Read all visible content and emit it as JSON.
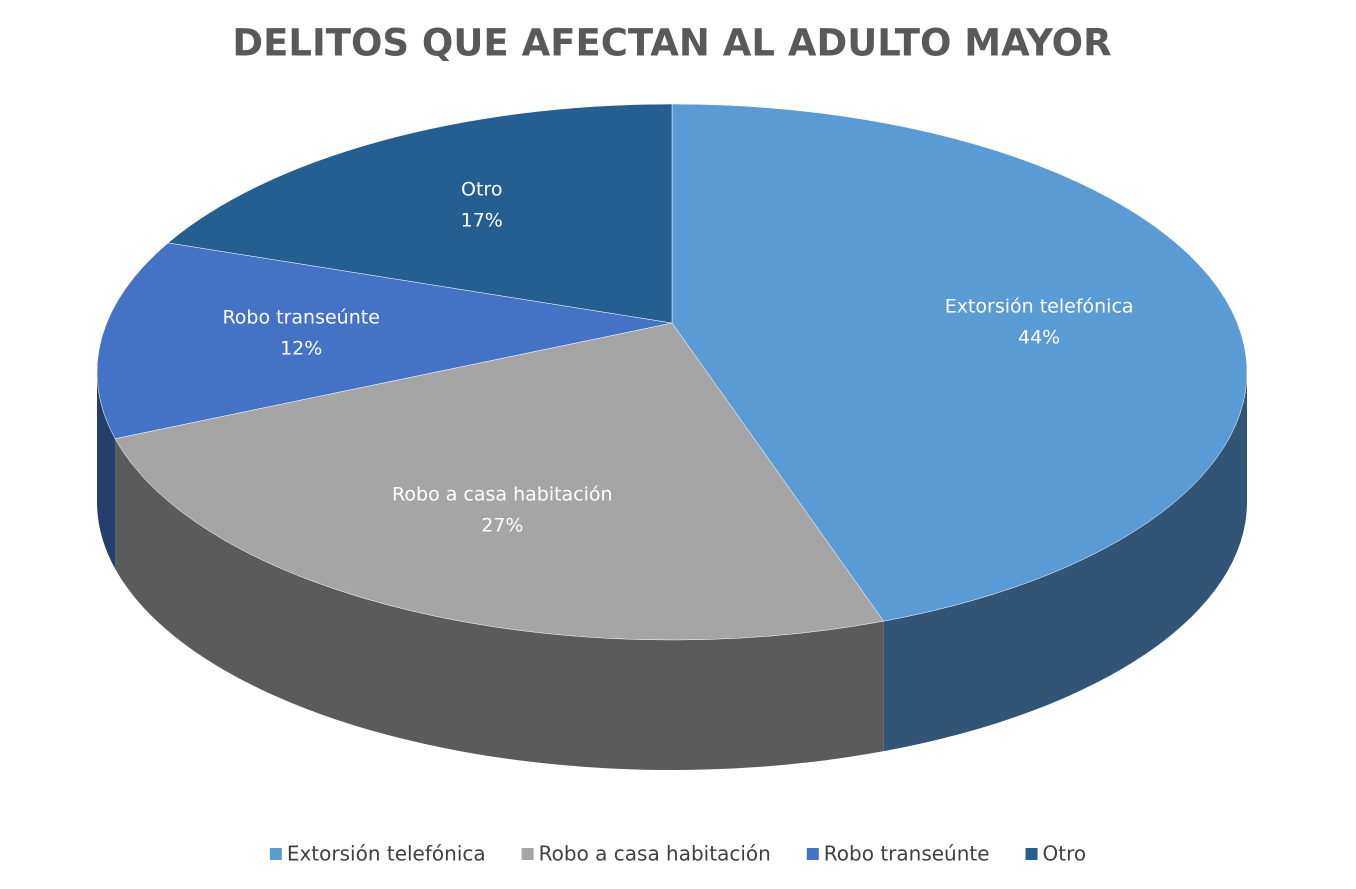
{
  "chart_data": {
    "type": "pie",
    "title": "DELITOS QUE AFECTAN AL ADULTO MAYOR",
    "categories": [
      "Extorsión telefónica",
      "Robo a casa habitación",
      "Robo transeúnte",
      "Otro"
    ],
    "values": [
      44,
      27,
      12,
      17
    ],
    "value_labels": [
      "44%",
      "27%",
      "12%",
      "17%"
    ],
    "colors": [
      "#5b9bd5",
      "#a5a5a5",
      "#4472c4",
      "#255e91"
    ],
    "legend": "bottom"
  }
}
